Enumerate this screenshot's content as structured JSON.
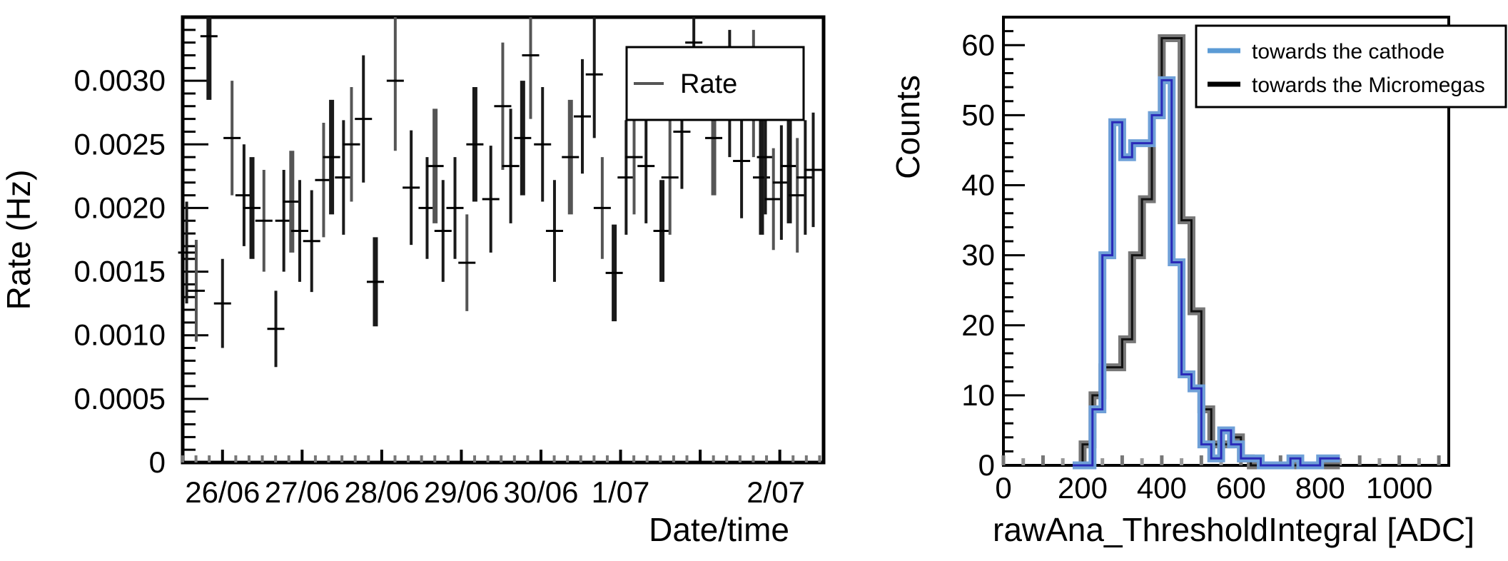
{
  "chart_data": [
    {
      "type": "scatter",
      "title": "",
      "xlabel": "Date/time",
      "ylabel": "Rate (Hz)",
      "ylim": [
        0,
        0.0035
      ],
      "xlim": [
        "25/06 12:00",
        "2/07 14:00"
      ],
      "x_tick_labels": [
        "26/06",
        "27/06",
        "28/06",
        "29/06",
        "30/06",
        "1/07",
        "2/07"
      ],
      "y_tick_labels": [
        "0",
        "0.0005",
        "0.0010",
        "0.0015",
        "0.0020",
        "0.0025",
        "0.0030"
      ],
      "y_ticks": [
        0,
        0.0005,
        0.001,
        0.0015,
        0.002,
        0.0025,
        0.003
      ],
      "legend": {
        "position": "top-right",
        "entries": [
          "Rate"
        ]
      },
      "series": [
        {
          "name": "Rate",
          "x_day": [
            0.55,
            0.67,
            0.83,
            1.0,
            1.12,
            1.27,
            1.37,
            1.52,
            1.67,
            1.77,
            1.87,
            1.97,
            2.12,
            2.27,
            2.37,
            2.52,
            2.62,
            2.77,
            2.92,
            3.17,
            3.37,
            3.57,
            3.67,
            3.77,
            3.92,
            4.07,
            4.17,
            4.37,
            4.52,
            4.62,
            4.77,
            4.87,
            5.02,
            5.17,
            5.37,
            5.52,
            5.67,
            5.77,
            5.92,
            6.07,
            6.17,
            6.32,
            6.52,
            6.62,
            6.77,
            6.92,
            7.17,
            7.37,
            7.52,
            7.67,
            7.77,
            7.82,
            7.92,
            8.02,
            8.12,
            8.22,
            8.32,
            8.42
          ],
          "y": [
            0.00165,
            0.00135,
            0.00335,
            0.00125,
            0.00255,
            0.0021,
            0.002,
            0.0019,
            0.00105,
            0.0019,
            0.00205,
            0.00182,
            0.00174,
            0.00222,
            0.0024,
            0.00224,
            0.0025,
            0.0027,
            0.00142,
            0.003,
            0.00216,
            0.002,
            0.00233,
            0.00182,
            0.002,
            0.00157,
            0.0025,
            0.00207,
            0.0028,
            0.00233,
            0.00255,
            0.0032,
            0.0025,
            0.00182,
            0.0024,
            0.00272,
            0.00305,
            0.002,
            0.00149,
            0.00224,
            0.0024,
            0.00233,
            0.00182,
            0.00224,
            0.0026,
            0.0033,
            0.00255,
            0.0029,
            0.00237,
            0.0029,
            0.00224,
            0.0024,
            0.00207,
            0.0022,
            0.00233,
            0.0021,
            0.00224,
            0.0023
          ],
          "yerr": [
            0.0004,
            0.0004,
            0.0005,
            0.00035,
            0.00045,
            0.0004,
            0.0004,
            0.0004,
            0.0003,
            0.0004,
            0.0004,
            0.0004,
            0.0004,
            0.00045,
            0.00045,
            0.00045,
            0.00045,
            0.0005,
            0.00035,
            0.00055,
            0.00045,
            0.0004,
            0.00045,
            0.0004,
            0.0004,
            0.00038,
            0.00045,
            0.00042,
            0.0005,
            0.00045,
            0.00045,
            0.0005,
            0.00045,
            0.0004,
            0.00045,
            0.00045,
            0.0005,
            0.0004,
            0.00038,
            0.00045,
            0.00045,
            0.00045,
            0.0004,
            0.00045,
            0.00045,
            0.0005,
            0.00045,
            0.0005,
            0.00045,
            0.0005,
            0.00045,
            0.00045,
            0.0004,
            0.00045,
            0.00045,
            0.00045,
            0.00045,
            0.00045
          ]
        }
      ]
    },
    {
      "type": "histogram",
      "title": "",
      "xlabel": "rawAna_ThresholdIntegral  [ADC]",
      "ylabel": "Counts",
      "xlim": [
        0,
        1125
      ],
      "ylim": [
        0,
        64
      ],
      "x_tick_labels": [
        "0",
        "200",
        "400",
        "600",
        "800",
        "1000"
      ],
      "x_ticks": [
        0,
        200,
        400,
        600,
        800,
        1000
      ],
      "y_tick_labels": [
        "0",
        "10",
        "20",
        "30",
        "40",
        "50",
        "60"
      ],
      "y_ticks": [
        0,
        10,
        20,
        30,
        40,
        50,
        60
      ],
      "bin_width": 25,
      "legend": {
        "position": "top-right",
        "entries": [
          "towards the cathode",
          "towards the Micromegas"
        ]
      },
      "series": [
        {
          "name": "towards the cathode",
          "color": "#3030c0",
          "bins_start": 175,
          "values": [
            0,
            0,
            8,
            30,
            49,
            44,
            46,
            46,
            50,
            55,
            29,
            13,
            11,
            3,
            1,
            5,
            3,
            1,
            1,
            0,
            0,
            0,
            1,
            0,
            0,
            1,
            1
          ]
        },
        {
          "name": "towards the Micromegas",
          "color": "#111111",
          "bins_start": 175,
          "values": [
            0,
            3,
            10,
            14,
            14,
            18,
            30,
            38,
            50,
            61,
            61,
            35,
            22,
            8,
            3,
            3,
            4,
            1,
            0,
            0,
            0,
            0,
            0,
            0,
            0,
            0,
            0
          ]
        }
      ]
    }
  ]
}
